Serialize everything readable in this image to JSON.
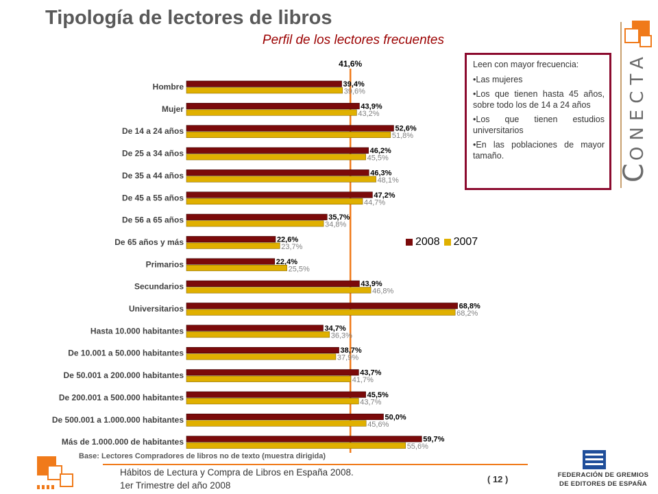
{
  "header": {
    "title": "Tipología de lectores de libros",
    "subtitle": "Perfil de los lectores frecuentes"
  },
  "chart_data": {
    "type": "bar",
    "orientation": "horizontal",
    "categories": [
      "Hombre",
      "Mujer",
      "De 14 a 24 años",
      "De 25 a 34 años",
      "De 35 a 44 años",
      "De 45 a 55 años",
      "De 56 a 65 años",
      "De 65 años y más",
      "Primarios",
      "Secundarios",
      "Universitarios",
      "Hasta 10.000 habitantes",
      "De 10.001 a 50.000 habitantes",
      "De 50.001 a 200.000 habitantes",
      "De 200.001 a 500.000 habitantes",
      "De 500.001 a 1.000.000 habitantes",
      "Más de 1.000.000 de habitantes"
    ],
    "series": [
      {
        "name": "2008",
        "color": "#7b0a0a",
        "values": [
          39.4,
          43.9,
          52.6,
          46.2,
          46.3,
          47.2,
          35.7,
          22.6,
          22.4,
          43.9,
          68.8,
          34.7,
          38.7,
          43.7,
          45.5,
          50.0,
          59.7
        ],
        "labels": [
          "39,4%",
          "43,9%",
          "52,6%",
          "46,2%",
          "46,3%",
          "47,2%",
          "35,7%",
          "22,6%",
          "22,4%",
          "43,9%",
          "68,8%",
          "34,7%",
          "38,7%",
          "43,7%",
          "45,5%",
          "50,0%",
          "59,7%"
        ]
      },
      {
        "name": "2007",
        "color": "#e0b000",
        "values": [
          39.6,
          43.2,
          51.8,
          45.5,
          48.1,
          44.7,
          34.8,
          23.7,
          25.5,
          46.8,
          68.2,
          36.3,
          37.9,
          41.7,
          43.7,
          45.6,
          55.6
        ],
        "labels": [
          "39,6%",
          "43,2%",
          "51,8%",
          "45,5%",
          "48,1%",
          "44,7%",
          "34,8%",
          "23,7%",
          "25,5%",
          "46,8%",
          "68,2%",
          "36,3%",
          "37,9%",
          "41,7%",
          "43,7%",
          "45,6%",
          "55,6%"
        ]
      }
    ],
    "reference_line": {
      "value": 41.6,
      "label": "41,6%",
      "color": "#f07a1a"
    },
    "legend": {
      "position": "right"
    },
    "grid": false
  },
  "note_box": {
    "heading": "Leen con mayor frecuencia:",
    "points": [
      "•Las mujeres",
      "•Los que tienen hasta 45 años, sobre todo los de 14 a 24 años",
      "•Los que tienen estudios universitarios",
      "•En las poblaciones de mayor tamaño."
    ]
  },
  "brand": {
    "initial": "C",
    "rest": "ONECTA"
  },
  "base_note": "Base: Lectores Compradores de libros no de texto (muestra dirigida)",
  "footer": {
    "line1": "Hábitos de Lectura y Compra de Libros en España 2008.",
    "line2": "1er Trimestre del año 2008",
    "page": "( 12 )",
    "federation_line1": "FEDERACIÓN DE GREMIOS",
    "federation_line2": "DE EDITORES DE ESPAÑA"
  }
}
